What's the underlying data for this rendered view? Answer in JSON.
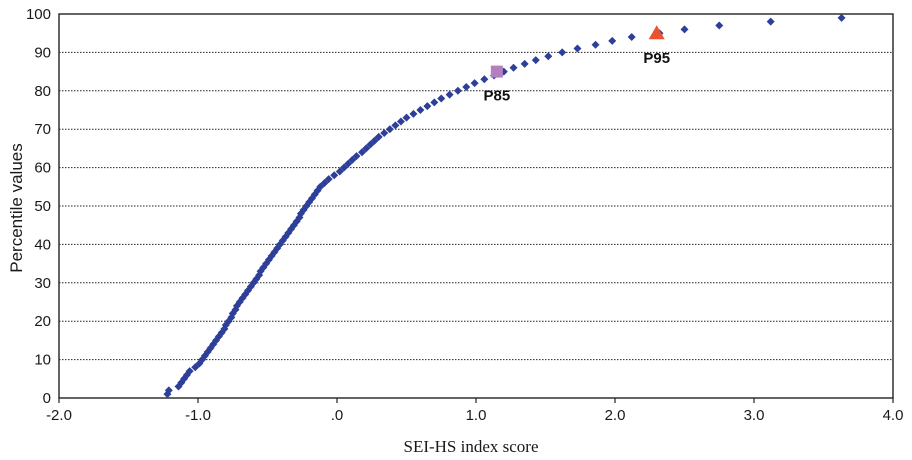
{
  "chart_data": {
    "type": "scatter",
    "title": "",
    "xlabel": "SEI-HS index score",
    "ylabel": "Percentile values",
    "xlim": [
      -2.0,
      4.0
    ],
    "ylim": [
      0,
      100
    ],
    "x_ticks": [
      {
        "value": -2.0,
        "label": "-2.0"
      },
      {
        "value": -1.0,
        "label": "-1.0"
      },
      {
        "value": 0.0,
        "label": ".0"
      },
      {
        "value": 1.0,
        "label": "1.0"
      },
      {
        "value": 2.0,
        "label": "2.0"
      },
      {
        "value": 3.0,
        "label": "3.0"
      },
      {
        "value": 4.0,
        "label": "4.0"
      }
    ],
    "y_ticks": [
      {
        "value": 0,
        "label": "0"
      },
      {
        "value": 10,
        "label": "10"
      },
      {
        "value": 20,
        "label": "20"
      },
      {
        "value": 30,
        "label": "30"
      },
      {
        "value": 40,
        "label": "40"
      },
      {
        "value": 50,
        "label": "50"
      },
      {
        "value": 60,
        "label": "60"
      },
      {
        "value": 70,
        "label": "70"
      },
      {
        "value": 80,
        "label": "80"
      },
      {
        "value": 90,
        "label": "90"
      },
      {
        "value": 100,
        "label": "100"
      }
    ],
    "grid": "horizontal",
    "series": [
      {
        "color": "#2e3f9a",
        "marker": "diamond",
        "points": [
          [
            -1.22,
            1
          ],
          [
            -1.21,
            2
          ],
          [
            -1.14,
            3
          ],
          [
            -1.12,
            4
          ],
          [
            -1.1,
            5
          ],
          [
            -1.08,
            6
          ],
          [
            -1.06,
            7
          ],
          [
            -1.02,
            8
          ],
          [
            -0.99,
            9
          ],
          [
            -0.97,
            10
          ],
          [
            -0.95,
            11
          ],
          [
            -0.93,
            12
          ],
          [
            -0.91,
            13
          ],
          [
            -0.89,
            14
          ],
          [
            -0.87,
            15
          ],
          [
            -0.85,
            16
          ],
          [
            -0.83,
            17
          ],
          [
            -0.81,
            18
          ],
          [
            -0.8,
            19
          ],
          [
            -0.78,
            20
          ],
          [
            -0.76,
            21
          ],
          [
            -0.75,
            22
          ],
          [
            -0.73,
            23
          ],
          [
            -0.72,
            24
          ],
          [
            -0.7,
            25
          ],
          [
            -0.68,
            26
          ],
          [
            -0.66,
            27
          ],
          [
            -0.64,
            28
          ],
          [
            -0.62,
            29
          ],
          [
            -0.6,
            30
          ],
          [
            -0.58,
            31
          ],
          [
            -0.56,
            32
          ],
          [
            -0.55,
            33
          ],
          [
            -0.53,
            34
          ],
          [
            -0.51,
            35
          ],
          [
            -0.49,
            36
          ],
          [
            -0.47,
            37
          ],
          [
            -0.45,
            38
          ],
          [
            -0.43,
            39
          ],
          [
            -0.41,
            40
          ],
          [
            -0.39,
            41
          ],
          [
            -0.37,
            42
          ],
          [
            -0.35,
            43
          ],
          [
            -0.33,
            44
          ],
          [
            -0.31,
            45
          ],
          [
            -0.29,
            46
          ],
          [
            -0.27,
            47
          ],
          [
            -0.26,
            48
          ],
          [
            -0.24,
            49
          ],
          [
            -0.22,
            50
          ],
          [
            -0.2,
            51
          ],
          [
            -0.18,
            52
          ],
          [
            -0.16,
            53
          ],
          [
            -0.14,
            54
          ],
          [
            -0.12,
            55
          ],
          [
            -0.09,
            56
          ],
          [
            -0.06,
            57
          ],
          [
            -0.02,
            58
          ],
          [
            0.02,
            59
          ],
          [
            0.05,
            60
          ],
          [
            0.08,
            61
          ],
          [
            0.11,
            62
          ],
          [
            0.14,
            63
          ],
          [
            0.18,
            64
          ],
          [
            0.21,
            65
          ],
          [
            0.24,
            66
          ],
          [
            0.27,
            67
          ],
          [
            0.3,
            68
          ],
          [
            0.34,
            69
          ],
          [
            0.38,
            70
          ],
          [
            0.42,
            71
          ],
          [
            0.46,
            72
          ],
          [
            0.5,
            73
          ],
          [
            0.55,
            74
          ],
          [
            0.6,
            75
          ],
          [
            0.65,
            76
          ],
          [
            0.7,
            77
          ],
          [
            0.75,
            78
          ],
          [
            0.81,
            79
          ],
          [
            0.87,
            80
          ],
          [
            0.93,
            81
          ],
          [
            0.99,
            82
          ],
          [
            1.06,
            83
          ],
          [
            1.13,
            84
          ],
          [
            1.2,
            85
          ],
          [
            1.27,
            86
          ],
          [
            1.35,
            87
          ],
          [
            1.43,
            88
          ],
          [
            1.52,
            89
          ],
          [
            1.62,
            90
          ],
          [
            1.73,
            91
          ],
          [
            1.86,
            92
          ],
          [
            1.98,
            93
          ],
          [
            2.12,
            94
          ],
          [
            2.32,
            95
          ],
          [
            2.5,
            96
          ],
          [
            2.75,
            97
          ],
          [
            3.12,
            98
          ],
          [
            3.63,
            99
          ]
        ]
      }
    ],
    "annotations": [
      {
        "label": "P85",
        "x": 1.15,
        "y": 85,
        "marker": "square",
        "color": "#b57fbf"
      },
      {
        "label": "P95",
        "x": 2.3,
        "y": 95,
        "marker": "triangle",
        "color": "#e8542d"
      }
    ]
  }
}
